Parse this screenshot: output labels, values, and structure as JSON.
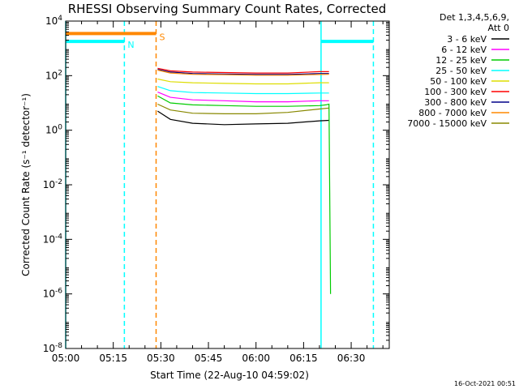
{
  "chart_data": {
    "type": "line",
    "title": "RHESSI Observing Summary Count Rates, Corrected",
    "xlabel": "Start Time (22-Aug-10 04:59:02)",
    "ylabel": "Corrected Count Rate (s⁻¹ detector⁻¹)",
    "yscale": "log",
    "ylim": [
      1e-08,
      10000.0
    ],
    "xlim_minutes": [
      0,
      102
    ],
    "x_ticks": [
      "05:00",
      "05:15",
      "05:30",
      "05:45",
      "06:00",
      "06:15",
      "06:30"
    ],
    "y_ticks": [
      {
        "base": "10",
        "exp": "4",
        "value": 10000
      },
      {
        "base": "10",
        "exp": "2",
        "value": 100
      },
      {
        "base": "10",
        "exp": "0",
        "value": 1
      },
      {
        "base": "10",
        "exp": "-2",
        "value": 0.01
      },
      {
        "base": "10",
        "exp": "-4",
        "value": 0.0001
      },
      {
        "base": "10",
        "exp": "-6",
        "value": 1e-06
      },
      {
        "base": "10",
        "exp": "-8",
        "value": 1e-08
      }
    ],
    "legend": {
      "placement": "right",
      "header": [
        "Det 1,3,4,5,6,9,",
        "Att 0"
      ]
    },
    "series": [
      {
        "name": "3 - 6 keV",
        "color": "#000000",
        "x": [
          29,
          33,
          40,
          50,
          60,
          70,
          80,
          83
        ],
        "values": [
          5,
          2.5,
          1.8,
          1.6,
          1.7,
          1.8,
          2.2,
          2.3
        ]
      },
      {
        "name": "6 - 12 keV",
        "color": "#ff00ff",
        "x": [
          29,
          33,
          40,
          50,
          60,
          70,
          80,
          83
        ],
        "values": [
          25,
          16,
          13,
          12,
          11,
          11,
          12,
          12
        ]
      },
      {
        "name": "12 - 25 keV",
        "color": "#00cc00",
        "x": [
          29,
          33,
          40,
          50,
          60,
          70,
          80,
          82,
          83,
          83.5
        ],
        "values": [
          18,
          10,
          8.5,
          8,
          7.5,
          7.5,
          8,
          8.5,
          9,
          1e-06
        ]
      },
      {
        "name": "25 - 50 keV",
        "color": "#00ffff",
        "x": [
          29,
          33,
          40,
          50,
          60,
          70,
          80,
          83
        ],
        "values": [
          40,
          28,
          24,
          23,
          22,
          22,
          23,
          23
        ]
      },
      {
        "name": "50 - 100 keV",
        "color": "#dddd00",
        "x": [
          29,
          33,
          40,
          50,
          60,
          70,
          80,
          83
        ],
        "values": [
          75,
          60,
          55,
          52,
          50,
          50,
          55,
          55
        ]
      },
      {
        "name": "100 - 300 keV",
        "color": "#ff0000",
        "x": [
          29,
          33,
          40,
          50,
          60,
          70,
          80,
          83
        ],
        "values": [
          185,
          150,
          135,
          130,
          125,
          125,
          140,
          140
        ]
      },
      {
        "name": "300 - 800 keV",
        "color": "#000088",
        "x": [
          29,
          33,
          40,
          50,
          60,
          70,
          80,
          83
        ],
        "values": [
          170,
          135,
          120,
          115,
          110,
          110,
          120,
          120
        ]
      },
      {
        "name": "800 - 7000 keV",
        "color": "#ff8800",
        "x": [
          29,
          33,
          40,
          50,
          60,
          70,
          80,
          83
        ],
        "values": [
          160,
          125,
          112,
          108,
          104,
          104,
          110,
          112
        ]
      },
      {
        "name": "7000 - 15000 keV",
        "color": "#888800",
        "x": [
          29,
          33,
          40,
          50,
          60,
          70,
          80,
          83
        ],
        "values": [
          9,
          5.5,
          4.2,
          4,
          4,
          4.5,
          6,
          6.5
        ]
      }
    ],
    "flags": [
      {
        "label": "N",
        "color": "#00ffff",
        "y_value": 1800,
        "segments": [
          [
            0,
            18.5
          ],
          [
            80.5,
            97
          ]
        ]
      },
      {
        "label": "S",
        "color": "#ff8800",
        "y_value": 3500,
        "segments": [
          [
            0,
            28.5
          ]
        ]
      }
    ],
    "vertical_lines": [
      {
        "x": 0,
        "color": "#00ffff",
        "dashed": false
      },
      {
        "x": 18.5,
        "color": "#00ffff",
        "dashed": true
      },
      {
        "x": 28.5,
        "color": "#ff8800",
        "dashed": true
      },
      {
        "x": 80.5,
        "color": "#00ffff",
        "dashed": false
      },
      {
        "x": 97,
        "color": "#00ffff",
        "dashed": true
      }
    ]
  },
  "timestamp": "16-Oct-2021 00:51"
}
